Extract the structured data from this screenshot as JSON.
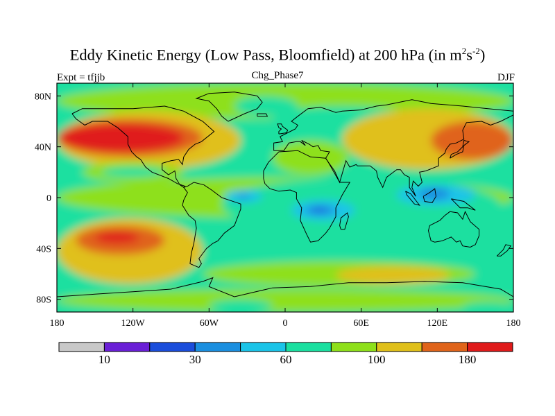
{
  "chart_data": {
    "type": "heatmap",
    "title": "Eddy Kinetic Energy (Low Pass, Bloomfield) at 200 hPa (in m",
    "title_unit_sup1": "2",
    "title_unit_mid": "s",
    "title_unit_sup2": "-2",
    "title_end": ")",
    "subtitle": "Chg_Phase7",
    "left_label": "Expt = tfjjb",
    "right_label": "DJF",
    "x_range": [
      -180,
      180
    ],
    "y_range": [
      -90,
      90
    ],
    "x_ticks": [
      {
        "value": -180,
        "label": "180"
      },
      {
        "value": -120,
        "label": "120W"
      },
      {
        "value": -60,
        "label": "60W"
      },
      {
        "value": 0,
        "label": "0"
      },
      {
        "value": 60,
        "label": "60E"
      },
      {
        "value": 120,
        "label": "120E"
      },
      {
        "value": 180,
        "label": "180"
      }
    ],
    "y_ticks": [
      {
        "value": 80,
        "label": "80N"
      },
      {
        "value": 40,
        "label": "40N"
      },
      {
        "value": 0,
        "label": "0"
      },
      {
        "value": -40,
        "label": "40S"
      },
      {
        "value": -80,
        "label": "80S"
      }
    ],
    "colorbar": {
      "colors": [
        "#c8c8c8",
        "#6a1fd6",
        "#1a4ddb",
        "#1a8fe0",
        "#1ac4e8",
        "#1ae0a0",
        "#8ee01a",
        "#e0c01a",
        "#e0641a",
        "#e01a1a"
      ],
      "labels": [
        {
          "after_bin": 1,
          "label": "10"
        },
        {
          "after_bin": 3,
          "label": "30"
        },
        {
          "after_bin": 5,
          "label": "60"
        },
        {
          "after_bin": 7,
          "label": "100"
        },
        {
          "after_bin": 9,
          "label": "180"
        }
      ]
    },
    "background_level": 5,
    "regions": [
      {
        "level": 6,
        "lon": [
          -180,
          180
        ],
        "lat": [
          62,
          90
        ]
      },
      {
        "level": 5,
        "lon": [
          -40,
          10
        ],
        "lat": [
          64,
          80
        ]
      },
      {
        "level": 5,
        "lon": [
          -10,
          100
        ],
        "lat": [
          55,
          72
        ]
      },
      {
        "level": 7,
        "lon": [
          -180,
          -35
        ],
        "lat": [
          22,
          68
        ]
      },
      {
        "level": 8,
        "lon": [
          -180,
          -65
        ],
        "lat": [
          32,
          62
        ]
      },
      {
        "level": 9,
        "lon": [
          -178,
          -80
        ],
        "lat": [
          36,
          58
        ]
      },
      {
        "level": 7,
        "lon": [
          45,
          180
        ],
        "lat": [
          22,
          70
        ]
      },
      {
        "level": 8,
        "lon": [
          115,
          180
        ],
        "lat": [
          30,
          60
        ]
      },
      {
        "level": 6,
        "lon": [
          -10,
          50
        ],
        "lat": [
          18,
          45
        ]
      },
      {
        "level": 6,
        "lon": [
          -160,
          -80
        ],
        "lat": [
          12,
          28
        ]
      },
      {
        "level": 5,
        "lon": [
          -145,
          -95
        ],
        "lat": [
          16,
          24
        ]
      },
      {
        "level": 6,
        "lon": [
          -180,
          180
        ],
        "lat": [
          -16,
          16
        ]
      },
      {
        "level": 5,
        "lon": [
          -50,
          170
        ],
        "lat": [
          -28,
          16
        ]
      },
      {
        "level": 4,
        "lon": [
          88,
          150
        ],
        "lat": [
          -6,
          10
        ]
      },
      {
        "level": 3,
        "lon": [
          105,
          130
        ],
        "lat": [
          -2,
          8
        ]
      },
      {
        "level": 4,
        "lon": [
          5,
          55
        ],
        "lat": [
          -18,
          -2
        ]
      },
      {
        "level": 3,
        "lon": [
          15,
          40
        ],
        "lat": [
          -14,
          -6
        ]
      },
      {
        "level": 2,
        "lon": [
          22,
          32
        ],
        "lat": [
          -11,
          -8
        ]
      },
      {
        "level": 4,
        "lon": [
          -48,
          -18
        ],
        "lat": [
          -4,
          6
        ]
      },
      {
        "level": 3,
        "lon": [
          -38,
          -28
        ],
        "lat": [
          -1,
          3
        ]
      },
      {
        "level": 7,
        "lon": [
          -180,
          -65
        ],
        "lat": [
          -68,
          -16
        ]
      },
      {
        "level": 8,
        "lon": [
          -165,
          -95
        ],
        "lat": [
          -45,
          -22
        ]
      },
      {
        "level": 9,
        "lon": [
          -150,
          -115
        ],
        "lat": [
          -36,
          -27
        ]
      },
      {
        "level": 5,
        "lon": [
          -60,
          120
        ],
        "lat": [
          -60,
          -28
        ]
      },
      {
        "level": 6,
        "lon": [
          -65,
          150
        ],
        "lat": [
          -70,
          -50
        ]
      },
      {
        "level": 7,
        "lon": [
          40,
          130
        ],
        "lat": [
          -68,
          -54
        ]
      },
      {
        "level": 6,
        "lon": [
          -180,
          180
        ],
        "lat": [
          -90,
          -72
        ]
      },
      {
        "level": 5,
        "lon": [
          -60,
          -10
        ],
        "lat": [
          -90,
          -80
        ]
      },
      {
        "level": 5,
        "lon": [
          140,
          180
        ],
        "lat": [
          -90,
          -82
        ]
      }
    ]
  }
}
